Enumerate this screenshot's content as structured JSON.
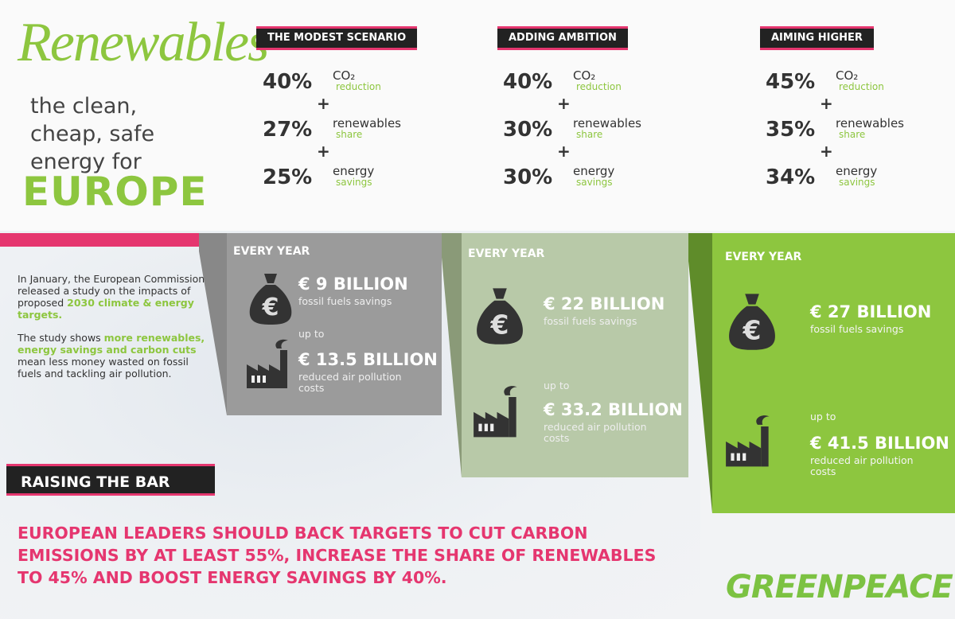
{
  "header": {
    "title": "Renewables",
    "tagline": [
      "the clean,",
      "cheap, safe",
      "energy for"
    ],
    "headline": "EUROPE"
  },
  "separator": "+",
  "scenarios": [
    {
      "name": "THE MODEST SCENARIO",
      "targets": [
        {
          "value": "40%",
          "label": "CO₂",
          "sub": "reduction"
        },
        {
          "value": "27%",
          "label": "renewables",
          "sub": "share"
        },
        {
          "value": "25%",
          "label": "energy",
          "sub": "savings"
        }
      ],
      "period": "EVERY YEAR",
      "fossil_amount": "€ 9 BILLION",
      "fossil_text": "fossil fuels savings",
      "prefix": "up to",
      "pollution_amount": "€ 13.5 BILLION",
      "pollution_text": "reduced air pollution costs"
    },
    {
      "name": "ADDING AMBITION",
      "targets": [
        {
          "value": "40%",
          "label": "CO₂",
          "sub": "reduction"
        },
        {
          "value": "30%",
          "label": "renewables",
          "sub": "share"
        },
        {
          "value": "30%",
          "label": "energy",
          "sub": "savings"
        }
      ],
      "period": "EVERY YEAR",
      "fossil_amount": "€ 22 BILLION",
      "fossil_text": "fossil fuels savings",
      "prefix": "up to",
      "pollution_amount": "€ 33.2 BILLION",
      "pollution_text": "reduced air pollution costs"
    },
    {
      "name": "AIMING HIGHER",
      "targets": [
        {
          "value": "45%",
          "label": "CO₂",
          "sub": "reduction"
        },
        {
          "value": "35%",
          "label": "renewables",
          "sub": "share"
        },
        {
          "value": "34%",
          "label": "energy",
          "sub": "savings"
        }
      ],
      "period": "EVERY YEAR",
      "fossil_amount": "€ 27 BILLION",
      "fossil_text": "fossil fuels savings",
      "prefix": "up to",
      "pollution_amount": "€ 41.5 BILLION",
      "pollution_text": "reduced air pollution costs"
    }
  ],
  "intro": [
    {
      "text": "In January, the European Commission released a study on the impacts of proposed ",
      "highlight": "2030 climate & energy targets."
    },
    {
      "text": "The study shows ",
      "highlight": "more renewables, energy savings and carbon cuts",
      "tail": " mean less money wasted on fossil fuels and tackling air pollution."
    }
  ],
  "section": "RAISING THE BAR",
  "call_to_action": "EUROPEAN LEADERS SHOULD BACK TARGETS TO CUT CARBON EMISSIONS BY AT LEAST 55%, INCREASE THE SHARE OF RENEWABLES TO 45% AND BOOST ENERGY SAVINGS BY 40%.",
  "logo": "GREENPEACE"
}
